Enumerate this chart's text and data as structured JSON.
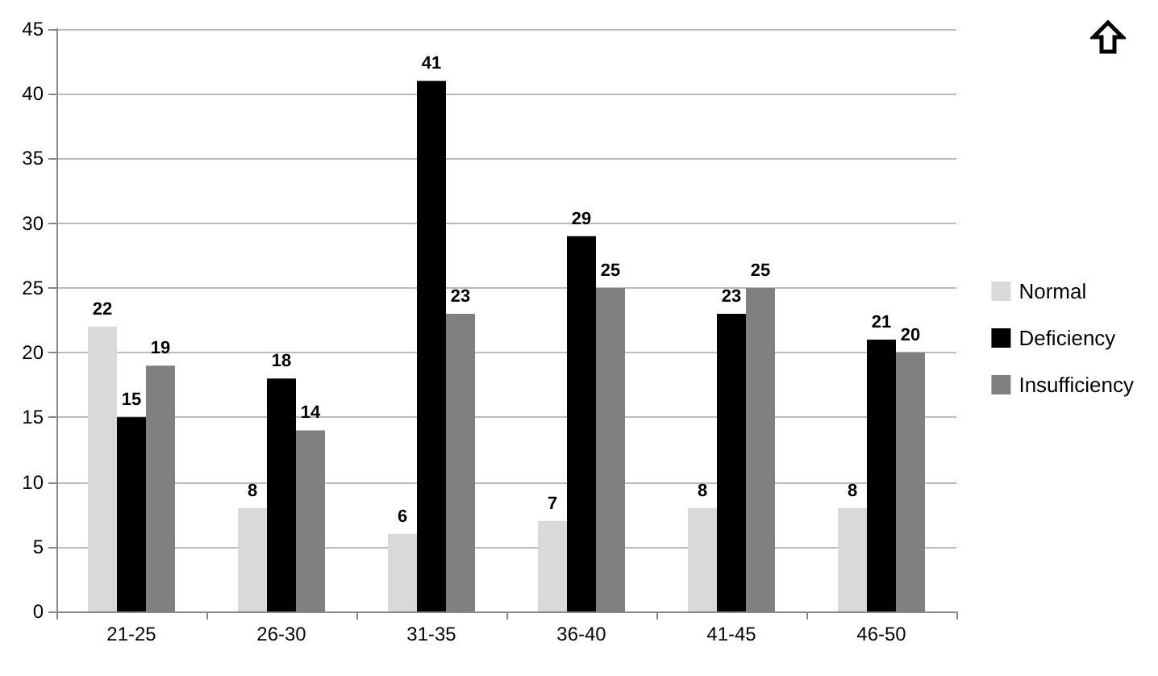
{
  "chart_data": {
    "type": "bar",
    "categories": [
      "21-25",
      "26-30",
      "31-35",
      "36-40",
      "41-45",
      "46-50"
    ],
    "series": [
      {
        "name": "Normal",
        "color": "#d9d9d9",
        "values": [
          22,
          8,
          6,
          7,
          8,
          8
        ]
      },
      {
        "name": "Deficiency",
        "color": "#000000",
        "values": [
          15,
          18,
          41,
          29,
          23,
          21
        ]
      },
      {
        "name": "Insufficiency",
        "color": "#808080",
        "values": [
          19,
          14,
          23,
          25,
          25,
          20
        ]
      }
    ],
    "ylim": [
      0,
      45
    ],
    "yticks": [
      0,
      5,
      10,
      15,
      20,
      25,
      30,
      35,
      40,
      45
    ],
    "grid": "y",
    "legend": "right",
    "data_labels": true
  }
}
